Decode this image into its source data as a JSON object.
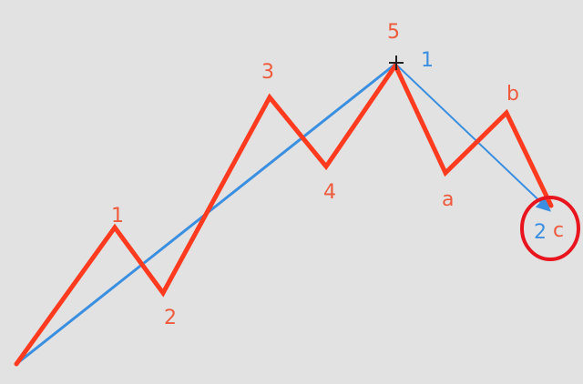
{
  "colors": {
    "background": "#e2e2e2",
    "wave": "#ff3b1f",
    "wave_label": "#ef5a3c",
    "trend": "#3b8fe0",
    "highlight_circle": "#e8141e",
    "cursor": "#222222"
  },
  "wave_labels": {
    "w1": "1",
    "w2": "2",
    "w3": "3",
    "w4": "4",
    "w5": "5",
    "wa": "a",
    "wb": "b",
    "wc": "c"
  },
  "trend_labels": {
    "t1": "1",
    "t2": "2"
  },
  "icons": {
    "cursor": "crosshair-cursor-icon",
    "highlight": "highlight-circle"
  }
}
